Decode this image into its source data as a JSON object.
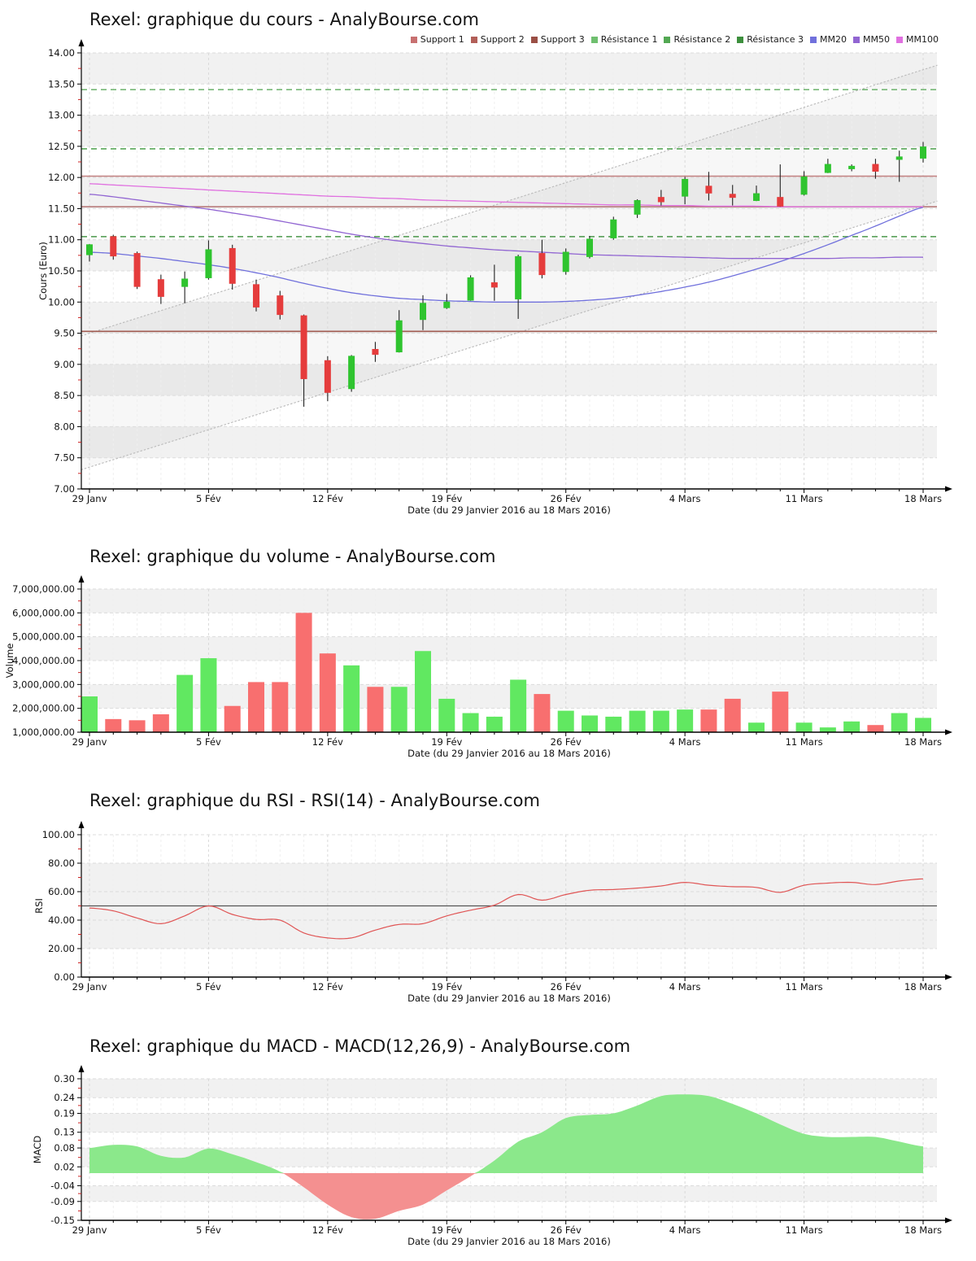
{
  "page": {
    "background": "#ffffff"
  },
  "legend": {
    "items": [
      {
        "label": "Support 1",
        "color": "#c87070"
      },
      {
        "label": "Support 2",
        "color": "#b25f58"
      },
      {
        "label": "Support 3",
        "color": "#9a4f45"
      },
      {
        "label": "Résistance 1",
        "color": "#6fbf6f"
      },
      {
        "label": "Résistance 2",
        "color": "#53a853"
      },
      {
        "label": "Résistance 3",
        "color": "#3d8f3d"
      },
      {
        "label": "MM20",
        "color": "#7070dc"
      },
      {
        "label": "MM50",
        "color": "#9165d2"
      },
      {
        "label": "MM100",
        "color": "#e070e0"
      }
    ]
  },
  "axis": {
    "x_ticks": [
      "29 Janv",
      "5 Fév",
      "12 Fév",
      "19 Fév",
      "26 Fév",
      "4 Mars",
      "11 Mars",
      "18 Mars"
    ],
    "x_tick_positions": [
      0,
      5,
      10,
      15,
      20,
      25,
      30,
      35
    ],
    "x_title": "Date (du 29 Janvier 2016 au 18 Mars 2016)"
  },
  "chart_data": [
    {
      "type": "candlestick",
      "title": "Rexel: graphique du cours - AnalyBourse.com",
      "ylabel": "Cours (Euro)",
      "xlabel": "Date (du 29 Janvier 2016 au 18 Mars 2016)",
      "ylim": [
        7.0,
        14.0
      ],
      "grid": true,
      "legend_position": "top-right",
      "yticks": [
        {
          "v": 14.0,
          "label": "14.00"
        },
        {
          "v": 13.5,
          "label": "13.50"
        },
        {
          "v": 13.0,
          "label": "13.00"
        },
        {
          "v": 12.5,
          "label": "12.50"
        },
        {
          "v": 12.0,
          "label": "12.00"
        },
        {
          "v": 11.5,
          "label": "11.50"
        },
        {
          "v": 11.0,
          "label": "11.00"
        },
        {
          "v": 10.5,
          "label": "10.50"
        },
        {
          "v": 10.0,
          "label": "10.00"
        },
        {
          "v": 9.5,
          "label": "9.50"
        },
        {
          "v": 9.0,
          "label": "9.00"
        },
        {
          "v": 8.5,
          "label": "8.50"
        },
        {
          "v": 8.0,
          "label": "8.00"
        },
        {
          "v": 7.5,
          "label": "7.50"
        },
        {
          "v": 7.0,
          "label": "7.00"
        }
      ],
      "dates": [
        "2016-01-29",
        "2016-02-01",
        "2016-02-02",
        "2016-02-03",
        "2016-02-04",
        "2016-02-05",
        "2016-02-08",
        "2016-02-09",
        "2016-02-10",
        "2016-02-11",
        "2016-02-12",
        "2016-02-15",
        "2016-02-16",
        "2016-02-17",
        "2016-02-18",
        "2016-02-19",
        "2016-02-22",
        "2016-02-23",
        "2016-02-24",
        "2016-02-25",
        "2016-02-26",
        "2016-02-29",
        "2016-03-01",
        "2016-03-02",
        "2016-03-03",
        "2016-03-04",
        "2016-03-07",
        "2016-03-08",
        "2016-03-09",
        "2016-03-10",
        "2016-03-11",
        "2016-03-14",
        "2016-03-15",
        "2016-03-16",
        "2016-03-17",
        "2016-03-18"
      ],
      "ohlc": [
        [
          10.76,
          10.93,
          10.65,
          10.92
        ],
        [
          11.05,
          11.08,
          10.68,
          10.74
        ],
        [
          10.78,
          10.81,
          10.21,
          10.25
        ],
        [
          10.36,
          10.44,
          9.97,
          10.09
        ],
        [
          10.25,
          10.49,
          9.98,
          10.37
        ],
        [
          10.39,
          10.99,
          10.36,
          10.84
        ],
        [
          10.86,
          10.92,
          10.2,
          10.3
        ],
        [
          10.28,
          10.36,
          9.85,
          9.92
        ],
        [
          10.1,
          10.18,
          9.72,
          9.8
        ],
        [
          9.78,
          9.8,
          8.32,
          8.77
        ],
        [
          9.06,
          9.13,
          8.41,
          8.55
        ],
        [
          8.61,
          9.15,
          8.56,
          9.13
        ],
        [
          9.24,
          9.36,
          9.04,
          9.16
        ],
        [
          9.2,
          9.87,
          9.19,
          9.7
        ],
        [
          9.72,
          10.11,
          9.55,
          9.98
        ],
        [
          9.91,
          10.13,
          9.89,
          10.0
        ],
        [
          10.03,
          10.43,
          10.02,
          10.39
        ],
        [
          10.31,
          10.6,
          10.02,
          10.24
        ],
        [
          10.05,
          10.76,
          9.73,
          10.73
        ],
        [
          10.78,
          11.0,
          10.38,
          10.44
        ],
        [
          10.49,
          10.86,
          10.44,
          10.8
        ],
        [
          10.73,
          11.06,
          10.7,
          11.01
        ],
        [
          11.03,
          11.37,
          11.0,
          11.32
        ],
        [
          11.41,
          11.65,
          11.35,
          11.63
        ],
        [
          11.68,
          11.8,
          11.55,
          11.61
        ],
        [
          11.7,
          12.01,
          11.57,
          11.97
        ],
        [
          11.86,
          12.09,
          11.63,
          11.75
        ],
        [
          11.73,
          11.88,
          11.55,
          11.68
        ],
        [
          11.63,
          11.87,
          11.62,
          11.74
        ],
        [
          11.68,
          12.21,
          11.53,
          11.54
        ],
        [
          11.73,
          12.1,
          11.71,
          12.01
        ],
        [
          12.08,
          12.3,
          12.07,
          12.21
        ],
        [
          12.14,
          12.21,
          12.1,
          12.18
        ],
        [
          12.21,
          12.3,
          11.98,
          12.1
        ],
        [
          12.29,
          12.43,
          11.93,
          12.33
        ],
        [
          12.31,
          12.57,
          12.24,
          12.49
        ]
      ],
      "series": [
        {
          "name": "MM20",
          "color": "#7070dc",
          "values": [
            10.8,
            10.78,
            10.74,
            10.7,
            10.65,
            10.6,
            10.54,
            10.47,
            10.39,
            10.3,
            10.22,
            10.15,
            10.1,
            10.06,
            10.04,
            10.02,
            10.01,
            10.0,
            10.0,
            10.0,
            10.01,
            10.03,
            10.06,
            10.11,
            10.17,
            10.24,
            10.32,
            10.42,
            10.53,
            10.65,
            10.78,
            10.92,
            11.07,
            11.22,
            11.38,
            11.52
          ]
        },
        {
          "name": "MM50",
          "color": "#9165d2",
          "values": [
            11.73,
            11.69,
            11.64,
            11.59,
            11.54,
            11.49,
            11.43,
            11.37,
            11.3,
            11.23,
            11.16,
            11.09,
            11.03,
            10.98,
            10.94,
            10.9,
            10.87,
            10.84,
            10.82,
            10.8,
            10.78,
            10.76,
            10.75,
            10.74,
            10.73,
            10.72,
            10.71,
            10.7,
            10.7,
            10.7,
            10.7,
            10.7,
            10.71,
            10.71,
            10.72,
            10.72
          ]
        },
        {
          "name": "MM100",
          "color": "#e070e0",
          "values": [
            11.9,
            11.88,
            11.86,
            11.84,
            11.82,
            11.8,
            11.78,
            11.76,
            11.74,
            11.72,
            11.7,
            11.69,
            11.67,
            11.66,
            11.64,
            11.63,
            11.62,
            11.61,
            11.6,
            11.59,
            11.58,
            11.57,
            11.56,
            11.56,
            11.55,
            11.55,
            11.54,
            11.54,
            11.54,
            11.53,
            11.53,
            11.53,
            11.53,
            11.53,
            11.53,
            11.53
          ]
        }
      ],
      "support_levels": [
        {
          "name": "Support 1",
          "value": 12.02,
          "color": "#c28484"
        },
        {
          "name": "Support 2",
          "value": 11.53,
          "color": "#b37272"
        },
        {
          "name": "Support 3",
          "value": 9.53,
          "color": "#a15c52"
        }
      ],
      "resistance_levels": [
        {
          "name": "Résistance 1",
          "value": 13.41,
          "color": "#77b877"
        },
        {
          "name": "Résistance 2",
          "value": 12.46,
          "color": "#5aa85a"
        },
        {
          "name": "Résistance 3",
          "value": 11.05,
          "color": "#4a974a"
        }
      ],
      "channel_lines": [
        {
          "start": 9.5,
          "end": 13.73
        },
        {
          "start": 7.35,
          "end": 11.55
        }
      ],
      "colors": {
        "up": "#2fc42f",
        "down": "#e53c3c",
        "wick": "#222222",
        "band": "#f1f1f1"
      }
    },
    {
      "type": "bar",
      "title": "Rexel: graphique du volume - AnalyBourse.com",
      "ylabel": "Volume",
      "xlabel": "Date (du 29 Janvier 2016 au 18 Mars 2016)",
      "ylim": [
        1000000,
        7000000
      ],
      "grid": true,
      "yticks": [
        {
          "v": 7000000,
          "label": "7,000,000.00"
        },
        {
          "v": 6000000,
          "label": "6,000,000.00"
        },
        {
          "v": 5000000,
          "label": "5,000,000.00"
        },
        {
          "v": 4000000,
          "label": "4,000,000.00"
        },
        {
          "v": 3000000,
          "label": "3,000,000.00"
        },
        {
          "v": 2000000,
          "label": "2,000,000.00"
        },
        {
          "v": 1000000,
          "label": "1,000,000.00"
        }
      ],
      "values": [
        2500000,
        1550000,
        1500000,
        1750000,
        3400000,
        4100000,
        2100000,
        3100000,
        3100000,
        6000000,
        4300000,
        3800000,
        2900000,
        2900000,
        4400000,
        2400000,
        1800000,
        1650000,
        3200000,
        2600000,
        1900000,
        1700000,
        1650000,
        1900000,
        1900000,
        1950000,
        1950000,
        2400000,
        1400000,
        2700000,
        1400000,
        1200000,
        1450000,
        1300000,
        1800000,
        1600000
      ],
      "directions": [
        "up",
        "down",
        "down",
        "down",
        "up",
        "up",
        "down",
        "down",
        "down",
        "down",
        "down",
        "up",
        "down",
        "up",
        "up",
        "up",
        "up",
        "up",
        "up",
        "down",
        "up",
        "up",
        "up",
        "up",
        "up",
        "up",
        "down",
        "down",
        "up",
        "down",
        "up",
        "up",
        "up",
        "down",
        "up",
        "up"
      ],
      "colors": {
        "up": "#61e861",
        "down": "#f86f6f",
        "band": "#f1f1f1"
      }
    },
    {
      "type": "line",
      "title": "Rexel: graphique du RSI - RSI(14) - AnalyBourse.com",
      "ylabel": "RSI",
      "xlabel": "Date (du 29 Janvier 2016 au 18 Mars 2016)",
      "ylim": [
        0,
        100
      ],
      "grid": true,
      "band_range": [
        20,
        80
      ],
      "center_line": 50,
      "yticks": [
        {
          "v": 100,
          "label": "100.00"
        },
        {
          "v": 80,
          "label": "80.00"
        },
        {
          "v": 60,
          "label": "60.00"
        },
        {
          "v": 40,
          "label": "40.00"
        },
        {
          "v": 20,
          "label": "20.00"
        },
        {
          "v": 0,
          "label": "0.00"
        }
      ],
      "values": [
        48.5,
        46.5,
        41.5,
        37.5,
        43,
        50,
        44,
        40.5,
        40,
        31,
        27.5,
        27.5,
        33,
        37,
        37.5,
        43,
        47,
        50.5,
        58,
        54,
        58,
        61,
        61.5,
        62.5,
        64,
        66.5,
        64.5,
        63.5,
        63,
        59.5,
        64.5,
        66,
        66.5,
        65,
        67.5,
        69
      ],
      "colors": {
        "line": "#e05555",
        "center": "#555555",
        "band": "#f1f1f1"
      }
    },
    {
      "type": "area",
      "title": "Rexel: graphique du MACD - MACD(12,26,9) - AnalyBourse.com",
      "ylabel": "MACD",
      "xlabel": "Date (du 29 Janvier 2016 au 18 Mars 2016)",
      "ylim": [
        -0.15,
        0.3
      ],
      "grid": true,
      "baseline": 0,
      "yticks": [
        {
          "v": 0.3,
          "label": "0.30"
        },
        {
          "v": 0.24,
          "label": "0.24"
        },
        {
          "v": 0.19,
          "label": "0.19"
        },
        {
          "v": 0.13,
          "label": "0.13"
        },
        {
          "v": 0.08,
          "label": "0.08"
        },
        {
          "v": 0.02,
          "label": "0.02"
        },
        {
          "v": -0.04,
          "label": "-0.04"
        },
        {
          "v": -0.09,
          "label": "-0.09"
        },
        {
          "v": -0.15,
          "label": "-0.15"
        }
      ],
      "values": [
        0.08,
        0.09,
        0.085,
        0.055,
        0.05,
        0.078,
        0.06,
        0.035,
        0.005,
        -0.045,
        -0.1,
        -0.14,
        -0.145,
        -0.12,
        -0.1,
        -0.055,
        -0.01,
        0.04,
        0.1,
        0.13,
        0.175,
        0.185,
        0.19,
        0.215,
        0.245,
        0.25,
        0.245,
        0.22,
        0.19,
        0.155,
        0.125,
        0.115,
        0.115,
        0.115,
        0.1,
        0.085
      ],
      "colors": {
        "positive": "#8be88b",
        "negative": "#f49090",
        "band": "#f1f1f1"
      }
    }
  ]
}
